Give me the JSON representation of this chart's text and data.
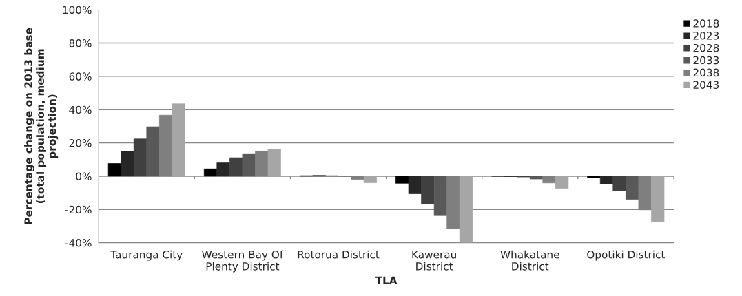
{
  "chart_data": {
    "type": "bar",
    "xlabel": "TLA",
    "ylabel": "Percentage change on 2013 base\n(total population, medium\nprojection)",
    "categories": [
      "Tauranga City",
      "Western Bay Of\nPlenty District",
      "Rotorua District",
      "Kawerau\nDistrict",
      "Whakatane\nDistrict",
      "Opotiki District"
    ],
    "series": [
      {
        "name": "2018",
        "color": "#000000",
        "values": [
          7.6,
          4.4,
          0.3,
          -4.3,
          0,
          -0.9
        ]
      },
      {
        "name": "2023",
        "color": "#262626",
        "values": [
          14.9,
          8.0,
          0.5,
          -10.6,
          -0.2,
          -4.7
        ]
      },
      {
        "name": "2028",
        "color": "#404040",
        "values": [
          22.4,
          11.1,
          0.3,
          -16.8,
          -0.5,
          -8.7
        ]
      },
      {
        "name": "2033",
        "color": "#595959",
        "values": [
          29.7,
          13.5,
          0,
          -23.7,
          -1.7,
          -13.9
        ]
      },
      {
        "name": "2038",
        "color": "#7f7f7f",
        "values": [
          36.7,
          15.1,
          -2,
          -31.7,
          -4.1,
          -20.2
        ]
      },
      {
        "name": "2043",
        "color": "#a6a6a6",
        "values": [
          43.5,
          16.2,
          -4,
          -40,
          -7.4,
          -27.4
        ]
      }
    ],
    "ylim": [
      -40,
      100
    ],
    "yticks": [
      {
        "value": -40,
        "label": "-40%"
      },
      {
        "value": -20,
        "label": "-20%"
      },
      {
        "value": 0,
        "label": "0%"
      },
      {
        "value": 20,
        "label": "20%"
      },
      {
        "value": 40,
        "label": "40%"
      },
      {
        "value": 60,
        "label": "60%"
      },
      {
        "value": 80,
        "label": "80%"
      },
      {
        "value": 100,
        "label": "100%"
      }
    ],
    "grid": "y",
    "legend": "top right"
  }
}
